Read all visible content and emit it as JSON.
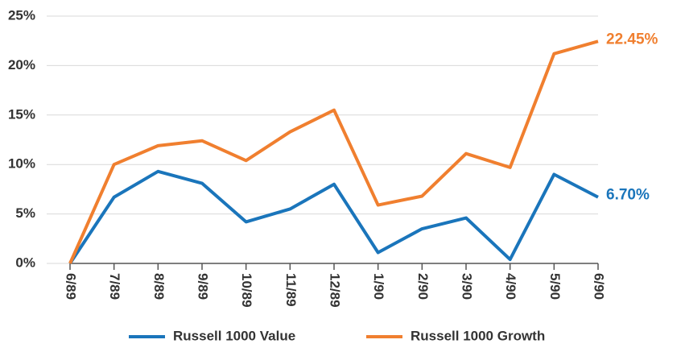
{
  "chart_data": {
    "type": "line",
    "categories": [
      "6/89",
      "7/89",
      "8/89",
      "9/89",
      "10/89",
      "11/89",
      "12/89",
      "1/90",
      "2/90",
      "3/90",
      "4/90",
      "5/90",
      "6/90"
    ],
    "series": [
      {
        "name": "Russell 1000 Value",
        "color": "#1a75bb",
        "values": [
          0,
          6.7,
          9.3,
          8.1,
          4.2,
          5.5,
          8.0,
          1.1,
          3.5,
          4.6,
          0.4,
          9.0,
          6.7
        ],
        "value_labels": [
          null,
          null,
          null,
          null,
          null,
          null,
          null,
          null,
          null,
          null,
          null,
          null,
          "6.70%"
        ]
      },
      {
        "name": "Russell 1000 Growth",
        "color": "#f07f2f",
        "values": [
          0,
          10.0,
          11.9,
          12.4,
          10.4,
          13.3,
          15.5,
          5.9,
          6.8,
          11.1,
          9.7,
          21.2,
          22.45
        ],
        "value_labels": [
          null,
          null,
          null,
          null,
          null,
          null,
          null,
          null,
          null,
          null,
          null,
          null,
          "22.45%"
        ]
      }
    ],
    "ylim": [
      0,
      25
    ],
    "yticks": [
      {
        "value": 0,
        "label": "0%"
      },
      {
        "value": 5,
        "label": "5%"
      },
      {
        "value": 10,
        "label": "10%"
      },
      {
        "value": 15,
        "label": "15%"
      },
      {
        "value": 20,
        "label": "20%"
      },
      {
        "value": 25,
        "label": "25%"
      }
    ],
    "grid": true,
    "legend": "bottom"
  }
}
